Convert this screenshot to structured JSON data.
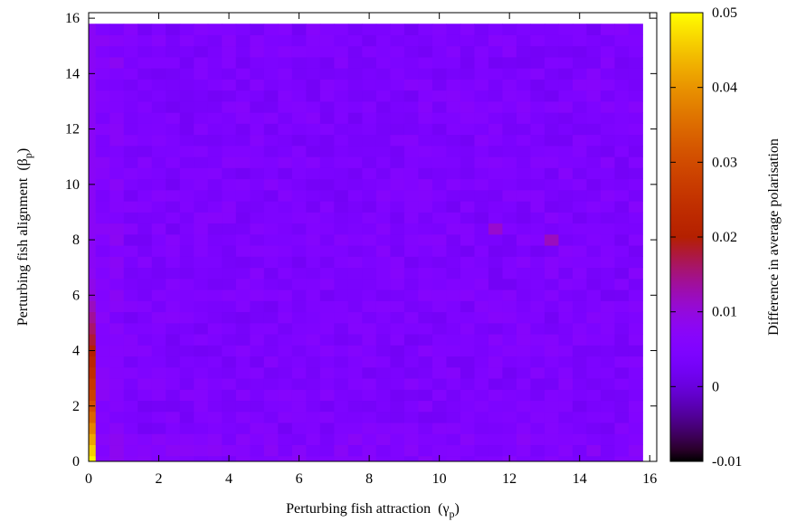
{
  "chart_data": {
    "type": "heatmap",
    "title": "",
    "xlabel": "Perturbing fish attraction",
    "xlabel_symbol": "γ",
    "xlabel_sub": "p",
    "ylabel": "Perturbing fish alignment",
    "ylabel_symbol": "β",
    "ylabel_sub": "p",
    "xlim": [
      0,
      16.2
    ],
    "ylim": [
      0,
      16.2
    ],
    "x_ticks": [
      0,
      2,
      4,
      6,
      8,
      10,
      12,
      14,
      16
    ],
    "y_ticks": [
      0,
      2,
      4,
      6,
      8,
      10,
      12,
      14,
      16
    ],
    "grid_cols": 40,
    "grid_rows": 40,
    "grid_step": 0.4,
    "colorbar": {
      "label": "Difference in average polarisation",
      "range": [
        -0.01,
        0.05
      ],
      "ticks": [
        "-0.01",
        "0",
        "0.01",
        "0.02",
        "0.03",
        "0.04",
        "0.05"
      ],
      "tick_values": [
        -0.01,
        0,
        0.01,
        0.02,
        0.03,
        0.04,
        0.05
      ],
      "colormap": "gnuplot-pm3d-7-5-15",
      "colors": [
        "#000000",
        "#5a00a8",
        "#8f0bf6",
        "#c2205f",
        "#e04e00",
        "#f99900",
        "#ffff00"
      ]
    },
    "typical_value": 0.0045,
    "column0_gamma0": [
      0.049,
      0.046,
      0.042,
      0.038,
      0.034,
      0.031,
      0.028,
      0.026,
      0.024,
      0.022,
      0.02,
      0.018,
      0.016,
      0.014,
      0.012,
      0.01,
      0.009,
      0.008
    ],
    "notable_cells": [
      {
        "x": 11.6,
        "y": 8.4,
        "value": 0.011
      },
      {
        "x": 13.2,
        "y": 8.0,
        "value": 0.012
      },
      {
        "x": 14.4,
        "y": 16.0,
        "value": 0.008
      }
    ]
  }
}
